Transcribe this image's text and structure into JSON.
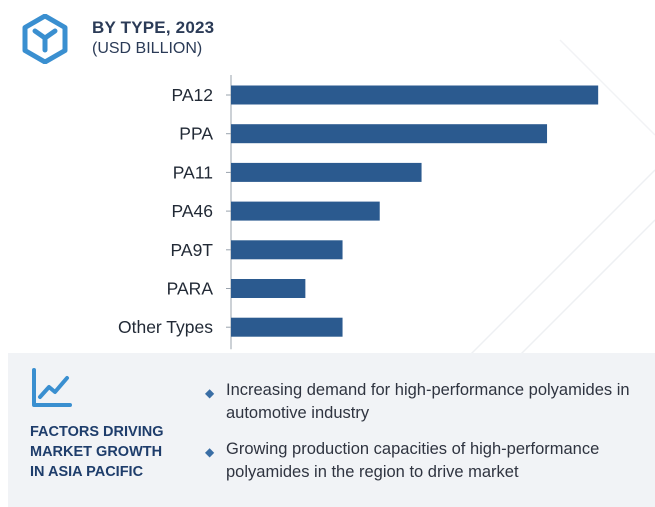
{
  "header": {
    "title": "BY TYPE, 2023",
    "subtitle": "(USD BILLION)",
    "logo_icon": "hexagon-y-logo-icon"
  },
  "colors": {
    "bar": "#2b5a8f",
    "axis": "#9aa3ad",
    "title": "#2b3b57",
    "accent": "#3a8fd0",
    "panel_bg": "#f1f3f6",
    "panel_title": "#1e3d6b"
  },
  "chart_data": {
    "type": "bar",
    "orientation": "horizontal",
    "title": "BY TYPE, 2023",
    "subtitle": "(USD BILLION)",
    "categories": [
      "PA12",
      "PPA",
      "PA11",
      "PA46",
      "PA9T",
      "PARA",
      "Other Types"
    ],
    "values": [
      3.95,
      3.4,
      2.05,
      1.6,
      1.2,
      0.8,
      1.2
    ],
    "xlim": [
      0,
      4.4
    ],
    "xlabel": "",
    "ylabel": "",
    "grid": false,
    "legend": "none"
  },
  "factors": {
    "icon": "trend-line-chart-icon",
    "title_lines": [
      "FACTORS DRIVING",
      "MARKET GROWTH",
      "IN ASIA PACIFIC"
    ],
    "bullets": [
      "Increasing demand for high-performance polyamides in automotive industry",
      "Growing production capacities of high-performance polyamides in the region to drive market"
    ]
  }
}
